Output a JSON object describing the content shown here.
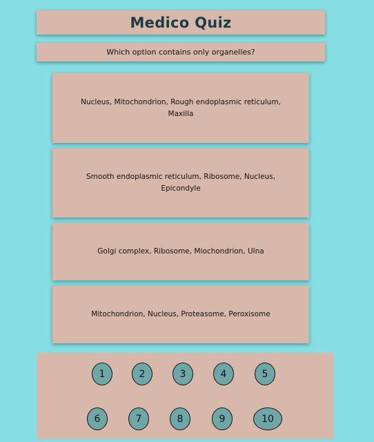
{
  "app": {
    "title": "Medico Quiz"
  },
  "question": {
    "text": "Which option contains only organelles?"
  },
  "options": [
    {
      "label": "Nucleus, Mitochondrion, Rough endoplasmic reticulum, Maxilla"
    },
    {
      "label": "Smooth endoplasmic reticulum, Ribosome, Nucleus, Epicondyle"
    },
    {
      "label": "Golgi complex, Ribosome, Miochondrion, Ulna"
    },
    {
      "label": "Mitochondrion, Nucleus, Proteasome, Peroxisome"
    }
  ],
  "navigation": {
    "question_numbers": [
      "1",
      "2",
      "3",
      "4",
      "5",
      "6",
      "7",
      "8",
      "9",
      "10"
    ]
  },
  "colors": {
    "background": "#86dde2",
    "card": "#d9b8ac",
    "number_button": "#6fa6a8",
    "title_text": "#1e3a44"
  }
}
